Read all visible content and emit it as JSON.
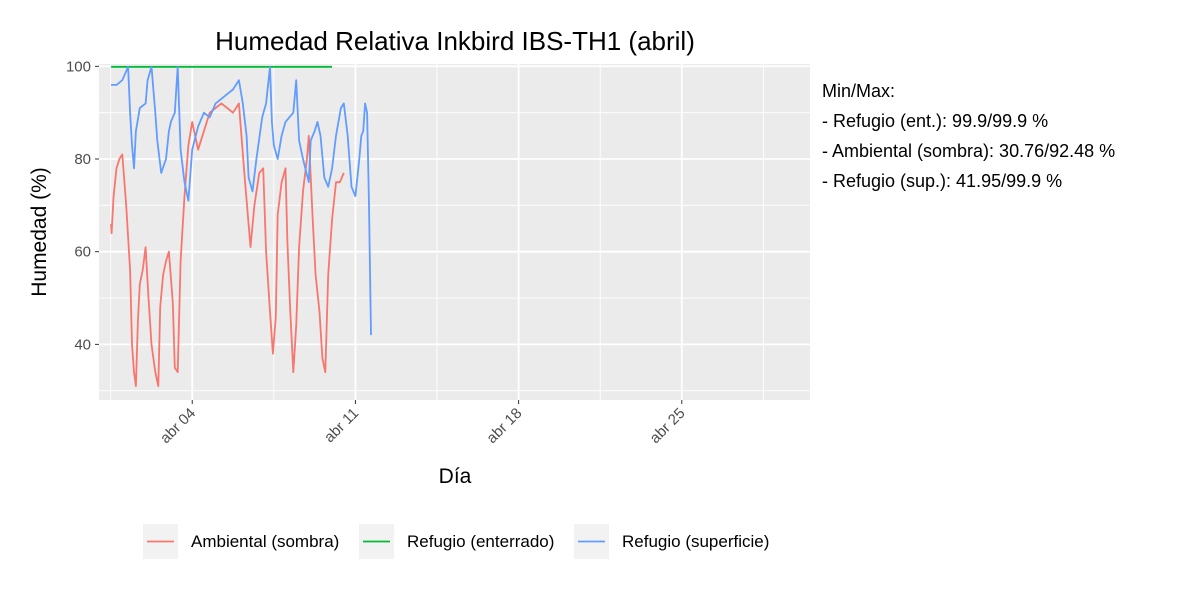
{
  "chart_data": {
    "type": "line",
    "title": "Humedad Relativa Inkbird IBS-TH1 (abril)",
    "xlabel": "Día",
    "ylabel": "Humedad (%)",
    "xlim": [
      "2023-03-31T00:00",
      "2023-04-30T12:00"
    ],
    "ylim": [
      28,
      100.5
    ],
    "x_ticks": [
      {
        "x": "2023-04-04T00:00",
        "label": "abr 04"
      },
      {
        "x": "2023-04-11T00:00",
        "label": "abr 11"
      },
      {
        "x": "2023-04-18T00:00",
        "label": "abr 18"
      },
      {
        "x": "2023-04-25T00:00",
        "label": "abr 25"
      }
    ],
    "y_ticks": [
      40,
      60,
      80,
      100
    ],
    "grid": true,
    "legend": {
      "position": "bottom"
    },
    "series": [
      {
        "name": "Ambiental (sombra)",
        "color": "#f8766d",
        "x": [
          "2023-04-00T12:30",
          "2023-04-00T13:00",
          "2023-04-00T15:00",
          "2023-04-00T18:00",
          "2023-04-00T21:00",
          "2023-04-01T00:00",
          "2023-04-01T04:00",
          "2023-04-01T08:00",
          "2023-04-01T10:00",
          "2023-04-01T12:00",
          "2023-04-01T14:00",
          "2023-04-01T16:00",
          "2023-04-01T18:00",
          "2023-04-01T21:00",
          "2023-04-02T00:00",
          "2023-04-02T03:00",
          "2023-04-02T06:00",
          "2023-04-02T10:00",
          "2023-04-02T13:00",
          "2023-04-02T15:00",
          "2023-04-02T18:00",
          "2023-04-02T21:00",
          "2023-04-03T00:00",
          "2023-04-03T04:00",
          "2023-04-03T06:00",
          "2023-04-03T09:00",
          "2023-04-03T12:00",
          "2023-04-03T16:00",
          "2023-04-03T20:00",
          "2023-04-04T00:00",
          "2023-04-04T06:00",
          "2023-04-04T12:00",
          "2023-04-04T18:00",
          "2023-04-05T00:00",
          "2023-04-05T06:00",
          "2023-04-05T12:00",
          "2023-04-05T18:00",
          "2023-04-06T00:00",
          "2023-04-06T06:00",
          "2023-04-06T12:00",
          "2023-04-06T16:00",
          "2023-04-06T21:00",
          "2023-04-07T01:00",
          "2023-04-07T04:00",
          "2023-04-07T08:00",
          "2023-04-07T11:00",
          "2023-04-07T14:00",
          "2023-04-07T16:00",
          "2023-04-07T20:00",
          "2023-04-08T00:00",
          "2023-04-08T02:00",
          "2023-04-08T05:00",
          "2023-04-08T08:00",
          "2023-04-08T11:00",
          "2023-04-08T14:00",
          "2023-04-08T18:00",
          "2023-04-08T22:00",
          "2023-04-09T00:00",
          "2023-04-09T04:00",
          "2023-04-09T07:00",
          "2023-04-09T11:00",
          "2023-04-09T14:00",
          "2023-04-09T17:00",
          "2023-04-09T20:00",
          "2023-04-10T00:00",
          "2023-04-10T04:00",
          "2023-04-10T08:00",
          "2023-04-10T12:00"
        ],
        "values": [
          66,
          64,
          72,
          78,
          80,
          81,
          70,
          56,
          40,
          34,
          31,
          45,
          53,
          56,
          61,
          50,
          40,
          34,
          31,
          48,
          55,
          58,
          60,
          49,
          35,
          34,
          58,
          72,
          83,
          88,
          82,
          86,
          90,
          91,
          92,
          91,
          90,
          92,
          76,
          61,
          70,
          77,
          78,
          60,
          47,
          38,
          46,
          68,
          75,
          78,
          62,
          47,
          34,
          44,
          61,
          73,
          80,
          85,
          67,
          55,
          47,
          37,
          34,
          55,
          67,
          75,
          75,
          77
        ]
      },
      {
        "name": "Refugio (enterrado)",
        "color": "#00ba38",
        "x": [
          "2023-04-00T12:30",
          "2023-04-10T00:00"
        ],
        "values": [
          99.9,
          99.9
        ]
      },
      {
        "name": "Refugio (superficie)",
        "color": "#619cff",
        "x": [
          "2023-04-00T12:30",
          "2023-04-00T18:00",
          "2023-04-01T00:00",
          "2023-04-01T06:00",
          "2023-04-01T08:00",
          "2023-04-01T10:00",
          "2023-04-01T12:00",
          "2023-04-01T14:00",
          "2023-04-01T18:00",
          "2023-04-02T00:00",
          "2023-04-02T02:00",
          "2023-04-02T06:00",
          "2023-04-02T10:00",
          "2023-04-02T12:00",
          "2023-04-02T16:00",
          "2023-04-02T21:00",
          "2023-04-03T00:00",
          "2023-04-03T02:00",
          "2023-04-03T06:00",
          "2023-04-03T09:00",
          "2023-04-03T12:00",
          "2023-04-03T16:00",
          "2023-04-03T20:00",
          "2023-04-04T00:00",
          "2023-04-04T06:00",
          "2023-04-04T12:00",
          "2023-04-04T18:00",
          "2023-04-05T00:00",
          "2023-04-05T06:00",
          "2023-04-05T12:00",
          "2023-04-05T18:00",
          "2023-04-06T00:00",
          "2023-04-06T04:00",
          "2023-04-06T08:00",
          "2023-04-06T10:00",
          "2023-04-06T14:00",
          "2023-04-06T18:00",
          "2023-04-07T00:00",
          "2023-04-07T04:00",
          "2023-04-07T08:00",
          "2023-04-07T10:00",
          "2023-04-07T12:00",
          "2023-04-07T16:00",
          "2023-04-07T20:00",
          "2023-04-08T00:00",
          "2023-04-08T04:00",
          "2023-04-08T08:00",
          "2023-04-08T11:00",
          "2023-04-08T14:00",
          "2023-04-08T18:00",
          "2023-04-09T00:00",
          "2023-04-09T02:00",
          "2023-04-09T06:00",
          "2023-04-09T09:00",
          "2023-04-09T12:00",
          "2023-04-09T16:00",
          "2023-04-09T20:00",
          "2023-04-10T00:00",
          "2023-04-10T04:00",
          "2023-04-10T09:00",
          "2023-04-10T12:00",
          "2023-04-10T16:00",
          "2023-04-10T20:00",
          "2023-04-11T00:00",
          "2023-04-11T04:00",
          "2023-04-11T06:00",
          "2023-04-11T08:00",
          "2023-04-11T10:00",
          "2023-04-11T12:00",
          "2023-04-11T14:00",
          "2023-04-11T16:00"
        ],
        "values": [
          96,
          96,
          97,
          99.9,
          90,
          83,
          78,
          86,
          91,
          92,
          97,
          99.9,
          90,
          84,
          77,
          80,
          86,
          88,
          90,
          99.9,
          82,
          75,
          71,
          82,
          87,
          90,
          89,
          92,
          93,
          94,
          95,
          97,
          92,
          85,
          76,
          73,
          80,
          89,
          92,
          99.9,
          88,
          83,
          80,
          85,
          88,
          89,
          90,
          97,
          84,
          80,
          75,
          84,
          86,
          88,
          85,
          76,
          74,
          78,
          85,
          91,
          92,
          85,
          74,
          72,
          80,
          85,
          86,
          92,
          90,
          70,
          42
        ]
      }
    ]
  },
  "note": {
    "heading": "Min/Max:",
    "lines": [
      "- Refugio (ent.): 99.9/99.9 %",
      "- Ambiental (sombra): 30.76/92.48 %",
      "- Refugio (sup.): 41.95/99.9 %"
    ]
  }
}
